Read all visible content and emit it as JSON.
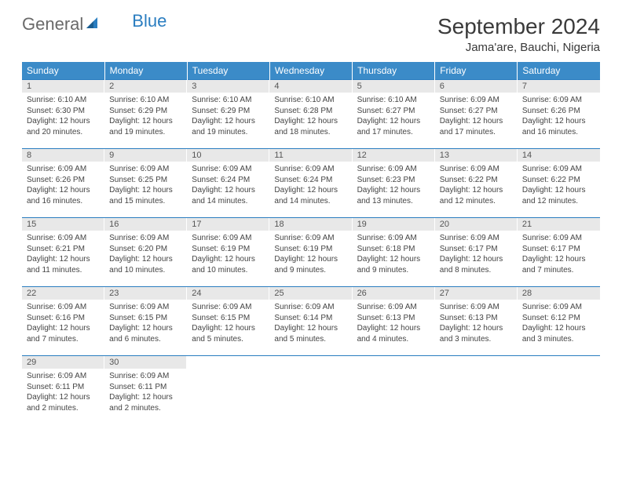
{
  "brand": {
    "part1": "General",
    "part2": "Blue"
  },
  "title": "September 2024",
  "location": "Jama'are, Bauchi, Nigeria",
  "colors": {
    "header_bg": "#3b8bc8",
    "header_text": "#ffffff",
    "daynum_bg": "#e8e8e8",
    "row_border": "#2a7dc0",
    "body_text": "#444444",
    "logo_gray": "#6a6a6a",
    "logo_blue": "#2a7dc0"
  },
  "weekdays": [
    "Sunday",
    "Monday",
    "Tuesday",
    "Wednesday",
    "Thursday",
    "Friday",
    "Saturday"
  ],
  "days": [
    {
      "n": "1",
      "sunrise": "6:10 AM",
      "sunset": "6:30 PM",
      "daylight": "12 hours and 20 minutes."
    },
    {
      "n": "2",
      "sunrise": "6:10 AM",
      "sunset": "6:29 PM",
      "daylight": "12 hours and 19 minutes."
    },
    {
      "n": "3",
      "sunrise": "6:10 AM",
      "sunset": "6:29 PM",
      "daylight": "12 hours and 19 minutes."
    },
    {
      "n": "4",
      "sunrise": "6:10 AM",
      "sunset": "6:28 PM",
      "daylight": "12 hours and 18 minutes."
    },
    {
      "n": "5",
      "sunrise": "6:10 AM",
      "sunset": "6:27 PM",
      "daylight": "12 hours and 17 minutes."
    },
    {
      "n": "6",
      "sunrise": "6:09 AM",
      "sunset": "6:27 PM",
      "daylight": "12 hours and 17 minutes."
    },
    {
      "n": "7",
      "sunrise": "6:09 AM",
      "sunset": "6:26 PM",
      "daylight": "12 hours and 16 minutes."
    },
    {
      "n": "8",
      "sunrise": "6:09 AM",
      "sunset": "6:26 PM",
      "daylight": "12 hours and 16 minutes."
    },
    {
      "n": "9",
      "sunrise": "6:09 AM",
      "sunset": "6:25 PM",
      "daylight": "12 hours and 15 minutes."
    },
    {
      "n": "10",
      "sunrise": "6:09 AM",
      "sunset": "6:24 PM",
      "daylight": "12 hours and 14 minutes."
    },
    {
      "n": "11",
      "sunrise": "6:09 AM",
      "sunset": "6:24 PM",
      "daylight": "12 hours and 14 minutes."
    },
    {
      "n": "12",
      "sunrise": "6:09 AM",
      "sunset": "6:23 PM",
      "daylight": "12 hours and 13 minutes."
    },
    {
      "n": "13",
      "sunrise": "6:09 AM",
      "sunset": "6:22 PM",
      "daylight": "12 hours and 12 minutes."
    },
    {
      "n": "14",
      "sunrise": "6:09 AM",
      "sunset": "6:22 PM",
      "daylight": "12 hours and 12 minutes."
    },
    {
      "n": "15",
      "sunrise": "6:09 AM",
      "sunset": "6:21 PM",
      "daylight": "12 hours and 11 minutes."
    },
    {
      "n": "16",
      "sunrise": "6:09 AM",
      "sunset": "6:20 PM",
      "daylight": "12 hours and 10 minutes."
    },
    {
      "n": "17",
      "sunrise": "6:09 AM",
      "sunset": "6:19 PM",
      "daylight": "12 hours and 10 minutes."
    },
    {
      "n": "18",
      "sunrise": "6:09 AM",
      "sunset": "6:19 PM",
      "daylight": "12 hours and 9 minutes."
    },
    {
      "n": "19",
      "sunrise": "6:09 AM",
      "sunset": "6:18 PM",
      "daylight": "12 hours and 9 minutes."
    },
    {
      "n": "20",
      "sunrise": "6:09 AM",
      "sunset": "6:17 PM",
      "daylight": "12 hours and 8 minutes."
    },
    {
      "n": "21",
      "sunrise": "6:09 AM",
      "sunset": "6:17 PM",
      "daylight": "12 hours and 7 minutes."
    },
    {
      "n": "22",
      "sunrise": "6:09 AM",
      "sunset": "6:16 PM",
      "daylight": "12 hours and 7 minutes."
    },
    {
      "n": "23",
      "sunrise": "6:09 AM",
      "sunset": "6:15 PM",
      "daylight": "12 hours and 6 minutes."
    },
    {
      "n": "24",
      "sunrise": "6:09 AM",
      "sunset": "6:15 PM",
      "daylight": "12 hours and 5 minutes."
    },
    {
      "n": "25",
      "sunrise": "6:09 AM",
      "sunset": "6:14 PM",
      "daylight": "12 hours and 5 minutes."
    },
    {
      "n": "26",
      "sunrise": "6:09 AM",
      "sunset": "6:13 PM",
      "daylight": "12 hours and 4 minutes."
    },
    {
      "n": "27",
      "sunrise": "6:09 AM",
      "sunset": "6:13 PM",
      "daylight": "12 hours and 3 minutes."
    },
    {
      "n": "28",
      "sunrise": "6:09 AM",
      "sunset": "6:12 PM",
      "daylight": "12 hours and 3 minutes."
    },
    {
      "n": "29",
      "sunrise": "6:09 AM",
      "sunset": "6:11 PM",
      "daylight": "12 hours and 2 minutes."
    },
    {
      "n": "30",
      "sunrise": "6:09 AM",
      "sunset": "6:11 PM",
      "daylight": "12 hours and 2 minutes."
    }
  ],
  "labels": {
    "sunrise": "Sunrise:",
    "sunset": "Sunset:",
    "daylight": "Daylight:"
  }
}
